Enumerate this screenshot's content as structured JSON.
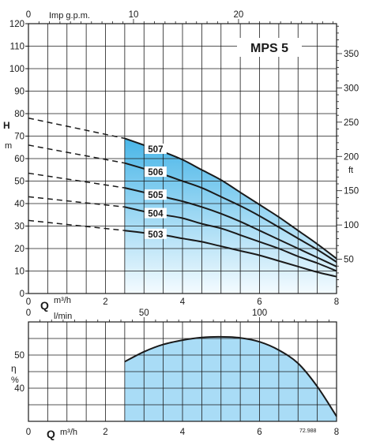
{
  "chart_data": [
    {
      "type": "line",
      "title": "MPS 5",
      "subtype": "pump head curves",
      "x": {
        "label": "Q",
        "unit": "m³/h",
        "range": [
          0,
          8
        ],
        "ticks": [
          0,
          2,
          4,
          6,
          8
        ]
      },
      "x_secondary_top": {
        "label": "Imp g.p.m.",
        "range": [
          0,
          29.33
        ],
        "ticks": [
          0,
          10,
          20
        ]
      },
      "y": {
        "label": "H",
        "unit": "m",
        "range": [
          0,
          120
        ],
        "ticks": [
          0,
          10,
          20,
          30,
          40,
          50,
          60,
          70,
          80,
          90,
          100,
          110,
          120
        ]
      },
      "y_secondary_right": {
        "label": "ft",
        "range": [
          0,
          393.7
        ],
        "ticks": [
          50,
          100,
          150,
          200,
          250,
          300,
          350
        ]
      },
      "operating_range_start": 2.5,
      "grid": true,
      "series": [
        {
          "name": "507",
          "x": [
            0,
            2.5,
            3,
            3.5,
            4,
            4.5,
            5,
            5.5,
            6,
            6.5,
            7,
            7.5,
            8
          ],
          "y": [
            78,
            69,
            66,
            63,
            59.5,
            55,
            50.5,
            45,
            39.5,
            34,
            28,
            22,
            15.5
          ]
        },
        {
          "name": "506",
          "x": [
            0,
            2.5,
            3,
            3.5,
            4,
            4.5,
            5,
            5.5,
            6,
            6.5,
            7,
            7.5,
            8
          ],
          "y": [
            66,
            58,
            55.5,
            53,
            50,
            47,
            43,
            39,
            34.5,
            29.5,
            24.5,
            19.5,
            14
          ]
        },
        {
          "name": "505",
          "x": [
            0,
            2.5,
            3,
            3.5,
            4,
            4.5,
            5,
            5.5,
            6,
            6.5,
            7,
            7.5,
            8
          ],
          "y": [
            53.5,
            47,
            45,
            43,
            41,
            38.5,
            35.5,
            32,
            28,
            24,
            20,
            16,
            12
          ]
        },
        {
          "name": "504",
          "x": [
            0,
            2.5,
            3,
            3.5,
            4,
            4.5,
            5,
            5.5,
            6,
            6.5,
            7,
            7.5,
            8
          ],
          "y": [
            43,
            38.5,
            36.5,
            35,
            33.5,
            31,
            29,
            26,
            23,
            20,
            16.5,
            13.5,
            10
          ]
        },
        {
          "name": "503",
          "x": [
            0,
            2.5,
            3,
            3.5,
            4,
            4.5,
            5,
            5.5,
            6,
            6.5,
            7,
            7.5,
            8
          ],
          "y": [
            32.5,
            28,
            27,
            26,
            24.5,
            23,
            21,
            19,
            17,
            14.5,
            12,
            9.5,
            7.5
          ]
        }
      ]
    },
    {
      "type": "area",
      "x": {
        "label": "Q",
        "unit": "m³/h",
        "range": [
          0,
          8
        ],
        "ticks": [
          0,
          2,
          4,
          6,
          8
        ]
      },
      "x_secondary_top": {
        "label": "l/min",
        "range": [
          0,
          133.3
        ],
        "ticks": [
          0,
          50,
          100
        ]
      },
      "y": {
        "label": "η",
        "unit": "%",
        "range": [
          30,
          60
        ],
        "ticks": [
          40,
          50
        ]
      },
      "grid": true,
      "series": [
        {
          "name": "",
          "x": [
            2.5,
            3,
            3.5,
            4,
            4.5,
            5,
            5.5,
            6,
            6.5,
            7,
            7.5,
            8
          ],
          "y": [
            48,
            51,
            53.2,
            54.5,
            55.3,
            55.5,
            55.2,
            54,
            51.5,
            47.5,
            40.5,
            31.5
          ]
        }
      ]
    }
  ],
  "footnote": "72.988",
  "colors": {
    "shade_top": "#49b6e8",
    "shade_bottom": "#f4fbff",
    "efficiency_fill": "#a9dcf6",
    "line": "#1a1a1a",
    "label_box": "#ffffff"
  }
}
